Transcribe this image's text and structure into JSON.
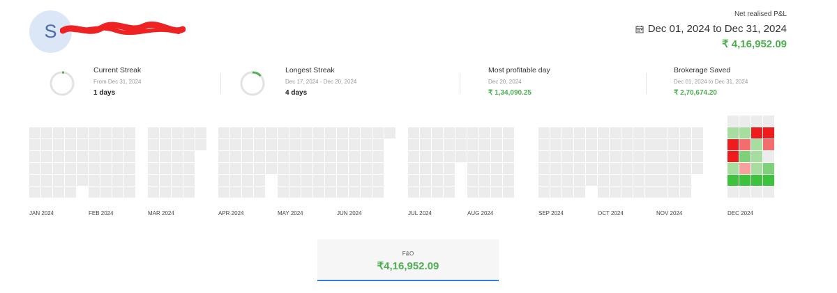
{
  "profile": {
    "avatar_initial": "S"
  },
  "pnl": {
    "label": "Net realised P&L",
    "date_range": "Dec 01, 2024 to Dec 31, 2024",
    "value": "₹ 4,16,952.09",
    "icon": "calendar-icon"
  },
  "stats": {
    "current_streak": {
      "title": "Current Streak",
      "subtitle": "From Dec 31, 2024",
      "value": "1 days",
      "progress": 0.03
    },
    "longest_streak": {
      "title": "Longest Streak",
      "subtitle": "Dec 17, 2024 - Dec 20, 2024",
      "value": "4 days",
      "progress": 0.13
    },
    "most_profitable": {
      "title": "Most profitable day",
      "subtitle": "Dec 20, 2024",
      "value": "₹ 1,34,090.25"
    },
    "brokerage": {
      "title": "Brokerage Saved",
      "subtitle": "Dec 01, 2024 to Dec 31, 2024",
      "value": "₹ 2,70,674.20"
    }
  },
  "heatmap": {
    "months": [
      "JAN 2024",
      "FEB 2024",
      "MAR 2024",
      "APR 2024",
      "MAY 2024",
      "JUN 2024",
      "JUL 2024",
      "AUG 2024",
      "SEP 2024",
      "OCT 2024",
      "NOV 2024",
      "DEC 2024"
    ],
    "colors": {
      "empty": "#ececec",
      "strong_loss": "#ee1c1c",
      "loss": "#f26d6d",
      "light_loss": "#f6a0a0",
      "light_profit": "#a8dda0",
      "profit": "#7fd07a",
      "strong_profit": "#3cc23c"
    },
    "december_cells": [
      [
        "light_profit",
        "light_profit",
        "strong_loss",
        "strong_loss",
        "loss"
      ],
      [
        "strong_loss",
        "loss",
        "light_profit",
        "loss",
        "light_profit"
      ],
      [
        "strong_loss",
        "profit",
        "light_profit",
        "",
        ""
      ],
      [
        "light_profit",
        "light_loss",
        "light_profit",
        "profit",
        ""
      ],
      [
        "strong_profit",
        "strong_profit",
        "strong_profit",
        "strong_profit",
        ""
      ]
    ]
  },
  "segment_tab": {
    "label": "F&O",
    "value": "₹4,16,952.09"
  }
}
